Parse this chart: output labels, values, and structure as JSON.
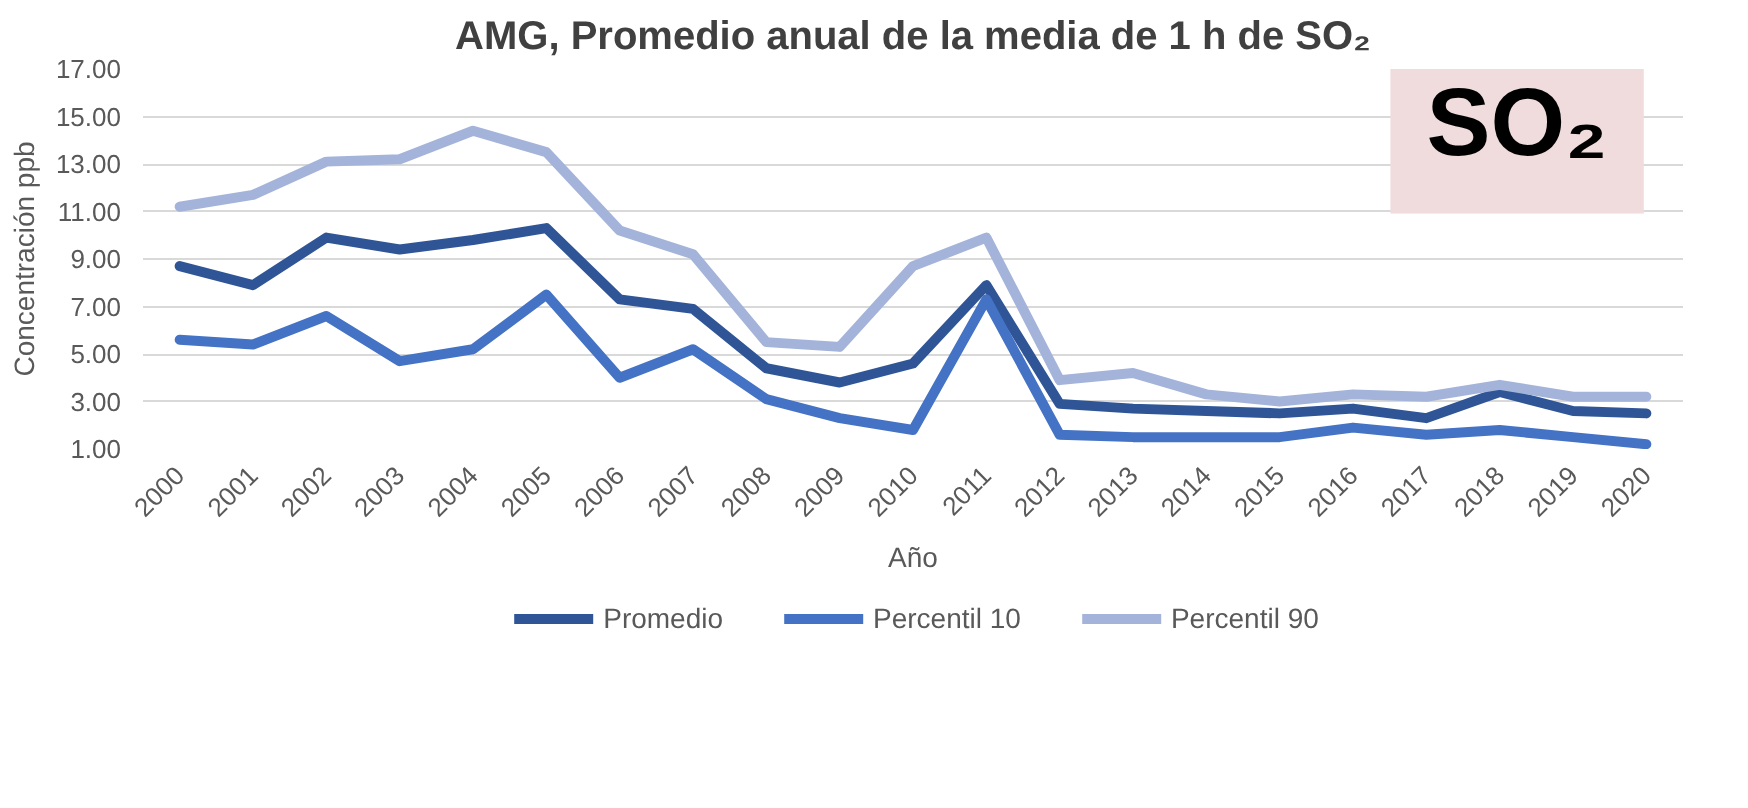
{
  "chart_data": {
    "type": "line",
    "title": "AMG, Promedio anual de la media de 1 h de SO₂",
    "xlabel": "Año",
    "ylabel": "Concentración ppb",
    "categories": [
      "2000",
      "2001",
      "2002",
      "2003",
      "2004",
      "2005",
      "2006",
      "2007",
      "2008",
      "2009",
      "2010",
      "2011",
      "2012",
      "2013",
      "2014",
      "2015",
      "2016",
      "2017",
      "2018",
      "2019",
      "2020"
    ],
    "series": [
      {
        "name": "Promedio",
        "color": "#2f5597",
        "values": [
          8.7,
          7.9,
          9.9,
          9.4,
          9.8,
          10.3,
          7.3,
          6.9,
          4.4,
          3.8,
          4.6,
          7.9,
          2.9,
          2.7,
          2.6,
          2.5,
          2.7,
          2.3,
          3.4,
          2.6,
          2.5
        ]
      },
      {
        "name": "Percentil 10",
        "color": "#4472c4",
        "values": [
          5.6,
          5.4,
          6.6,
          4.7,
          5.2,
          7.5,
          4.0,
          5.2,
          3.1,
          2.3,
          1.8,
          7.3,
          1.6,
          1.5,
          1.5,
          1.5,
          1.9,
          1.6,
          1.8,
          1.5,
          1.2
        ]
      },
      {
        "name": "Percentil 90",
        "color": "#a4b3d9",
        "values": [
          11.2,
          11.7,
          13.1,
          13.2,
          14.4,
          13.5,
          10.2,
          9.2,
          5.5,
          5.3,
          8.7,
          9.9,
          3.9,
          4.2,
          3.3,
          3.0,
          3.3,
          3.2,
          3.7,
          3.2,
          3.2
        ]
      }
    ],
    "ylim": [
      1,
      17
    ],
    "yticks": [
      {
        "value": 1,
        "label": "1.00"
      },
      {
        "value": 3,
        "label": "3.00"
      },
      {
        "value": 5,
        "label": "5.00"
      },
      {
        "value": 7,
        "label": "7.00"
      },
      {
        "value": 9,
        "label": "9.00"
      },
      {
        "value": 11,
        "label": "11.00"
      },
      {
        "value": 13,
        "label": "13.00"
      },
      {
        "value": 15,
        "label": "15.00"
      },
      {
        "value": 17,
        "label": "17.00"
      }
    ],
    "grid": "y",
    "legend": "bottom",
    "line_style": "solid",
    "marker": "none",
    "annotations": [
      "SO₂"
    ]
  }
}
